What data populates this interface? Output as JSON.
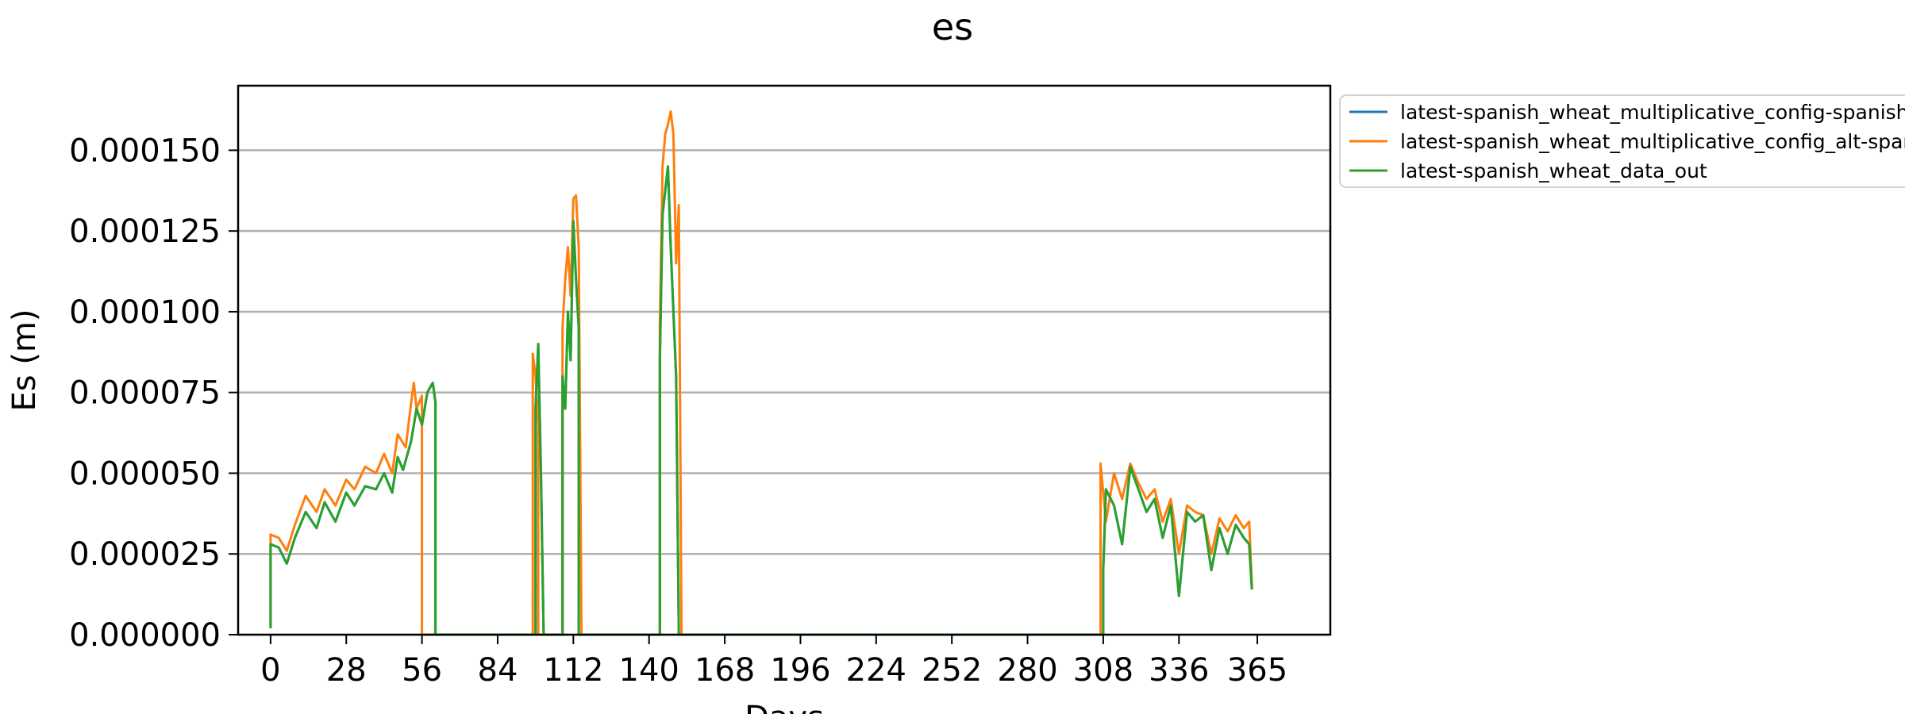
{
  "chart_data": {
    "type": "line",
    "title": "es",
    "xlabel": "Days",
    "ylabel": "Es (m)",
    "xlim": [
      -12,
      392
    ],
    "ylim": [
      0,
      0.00017
    ],
    "grid": "horizontal",
    "legend_position": "outside-top-right",
    "x_ticks": [
      0,
      28,
      56,
      84,
      112,
      140,
      168,
      196,
      224,
      252,
      280,
      308,
      336,
      365
    ],
    "y_ticks": [
      0,
      2.5e-05,
      5e-05,
      7.5e-05,
      0.0001,
      0.000125,
      0.00015
    ],
    "y_tick_labels": [
      "0.000000",
      "0.000025",
      "0.000050",
      "0.000075",
      "0.000100",
      "0.000125",
      "0.000150"
    ],
    "series": [
      {
        "name": "latest-spanish_wheat_multiplicative_config-spanish_w",
        "color": "#1f77b4",
        "points": [
          [
            0,
            2e-06
          ],
          [
            0,
            2.8e-05
          ],
          [
            3,
            2.7e-05
          ],
          [
            6,
            2.2e-05
          ],
          [
            9,
            3e-05
          ],
          [
            13,
            3.8e-05
          ],
          [
            17,
            3.3e-05
          ],
          [
            20,
            4.1e-05
          ],
          [
            24,
            3.5e-05
          ],
          [
            28,
            4.4e-05
          ],
          [
            31,
            4e-05
          ],
          [
            35,
            4.6e-05
          ],
          [
            39,
            4.5e-05
          ],
          [
            42,
            5e-05
          ],
          [
            45,
            4.4e-05
          ],
          [
            47,
            5.5e-05
          ],
          [
            49,
            5.1e-05
          ],
          [
            52,
            6e-05
          ],
          [
            54,
            7e-05
          ],
          [
            56,
            6.5e-05
          ],
          [
            58,
            7.5e-05
          ],
          [
            60,
            7.8e-05
          ],
          [
            61,
            7.2e-05
          ],
          [
            61,
            0
          ],
          [
            98,
            0
          ],
          [
            98,
            7e-05
          ],
          [
            99,
            9e-05
          ],
          [
            100,
            5e-05
          ],
          [
            101,
            0
          ],
          [
            108,
            0
          ],
          [
            108,
            8e-05
          ],
          [
            109,
            7e-05
          ],
          [
            110,
            0.0001
          ],
          [
            111,
            8.5e-05
          ],
          [
            112,
            0.000128
          ],
          [
            113,
            0.00011
          ],
          [
            114,
            9.5e-05
          ],
          [
            114,
            0
          ],
          [
            144,
            0
          ],
          [
            144,
            8.5e-05
          ],
          [
            145,
            0.00013
          ],
          [
            147,
            0.000145
          ],
          [
            148,
            0.00012
          ],
          [
            149,
            0.0001
          ],
          [
            150,
            8e-05
          ],
          [
            151,
            0
          ],
          [
            308,
            0
          ],
          [
            308,
            2e-05
          ],
          [
            309,
            4.5e-05
          ],
          [
            312,
            4e-05
          ],
          [
            315,
            2.8e-05
          ],
          [
            318,
            5.2e-05
          ],
          [
            321,
            4.5e-05
          ],
          [
            324,
            3.8e-05
          ],
          [
            327,
            4.2e-05
          ],
          [
            330,
            3e-05
          ],
          [
            333,
            4e-05
          ],
          [
            336,
            1.2e-05
          ],
          [
            339,
            3.8e-05
          ],
          [
            342,
            3.5e-05
          ],
          [
            345,
            3.7e-05
          ],
          [
            348,
            2e-05
          ],
          [
            351,
            3.3e-05
          ],
          [
            354,
            2.5e-05
          ],
          [
            357,
            3.4e-05
          ],
          [
            360,
            3e-05
          ],
          [
            362,
            2.8e-05
          ],
          [
            363,
            1.4e-05
          ]
        ]
      },
      {
        "name": "latest-spanish_wheat_multiplicative_config_alt-spanis",
        "color": "#ff7f0e",
        "points": [
          [
            0,
            3e-06
          ],
          [
            0,
            3.1e-05
          ],
          [
            3,
            3e-05
          ],
          [
            6,
            2.6e-05
          ],
          [
            9,
            3.4e-05
          ],
          [
            13,
            4.3e-05
          ],
          [
            17,
            3.8e-05
          ],
          [
            20,
            4.5e-05
          ],
          [
            24,
            4e-05
          ],
          [
            28,
            4.8e-05
          ],
          [
            31,
            4.5e-05
          ],
          [
            35,
            5.2e-05
          ],
          [
            39,
            5e-05
          ],
          [
            42,
            5.6e-05
          ],
          [
            45,
            5e-05
          ],
          [
            47,
            6.2e-05
          ],
          [
            50,
            5.8e-05
          ],
          [
            52,
            7.2e-05
          ],
          [
            53,
            7.8e-05
          ],
          [
            54,
            7e-05
          ],
          [
            56,
            7.4e-05
          ],
          [
            56,
            0
          ],
          [
            97,
            0
          ],
          [
            97,
            8.7e-05
          ],
          [
            98,
            8e-05
          ],
          [
            99,
            6.5e-05
          ],
          [
            99,
            0
          ],
          [
            108,
            0
          ],
          [
            108,
            9.5e-05
          ],
          [
            109,
            0.00011
          ],
          [
            110,
            0.00012
          ],
          [
            111,
            0.000105
          ],
          [
            112,
            0.000135
          ],
          [
            113,
            0.000136
          ],
          [
            114,
            0.00012
          ],
          [
            115,
            0
          ],
          [
            144,
            0
          ],
          [
            144,
            9.5e-05
          ],
          [
            145,
            0.000145
          ],
          [
            146,
            0.000155
          ],
          [
            147,
            0.000158
          ],
          [
            148,
            0.000162
          ],
          [
            149,
            0.000155
          ],
          [
            150,
            0.000115
          ],
          [
            151,
            0.000133
          ],
          [
            152,
            0
          ],
          [
            307,
            0
          ],
          [
            307,
            5.3e-05
          ],
          [
            309,
            3.5e-05
          ],
          [
            312,
            5e-05
          ],
          [
            315,
            4.2e-05
          ],
          [
            318,
            5.3e-05
          ],
          [
            321,
            4.7e-05
          ],
          [
            324,
            4.2e-05
          ],
          [
            327,
            4.5e-05
          ],
          [
            330,
            3.5e-05
          ],
          [
            333,
            4.2e-05
          ],
          [
            336,
            2.5e-05
          ],
          [
            339,
            4e-05
          ],
          [
            342,
            3.8e-05
          ],
          [
            345,
            3.7e-05
          ],
          [
            348,
            2.5e-05
          ],
          [
            351,
            3.6e-05
          ],
          [
            354,
            3.2e-05
          ],
          [
            357,
            3.7e-05
          ],
          [
            360,
            3.3e-05
          ],
          [
            362,
            3.5e-05
          ],
          [
            363,
            1.5e-05
          ]
        ]
      },
      {
        "name": "latest-spanish_wheat_data_out",
        "color": "#2ca02c",
        "points": [
          [
            0,
            2e-06
          ],
          [
            0,
            2.8e-05
          ],
          [
            3,
            2.7e-05
          ],
          [
            6,
            2.2e-05
          ],
          [
            9,
            3e-05
          ],
          [
            13,
            3.8e-05
          ],
          [
            17,
            3.3e-05
          ],
          [
            20,
            4.1e-05
          ],
          [
            24,
            3.5e-05
          ],
          [
            28,
            4.4e-05
          ],
          [
            31,
            4e-05
          ],
          [
            35,
            4.6e-05
          ],
          [
            39,
            4.5e-05
          ],
          [
            42,
            5e-05
          ],
          [
            45,
            4.4e-05
          ],
          [
            47,
            5.5e-05
          ],
          [
            49,
            5.1e-05
          ],
          [
            52,
            6e-05
          ],
          [
            54,
            7e-05
          ],
          [
            56,
            6.5e-05
          ],
          [
            58,
            7.5e-05
          ],
          [
            60,
            7.8e-05
          ],
          [
            61,
            7.2e-05
          ],
          [
            61,
            0
          ],
          [
            98,
            0
          ],
          [
            98,
            7e-05
          ],
          [
            99,
            9e-05
          ],
          [
            100,
            5e-05
          ],
          [
            101,
            0
          ],
          [
            108,
            0
          ],
          [
            108,
            8e-05
          ],
          [
            109,
            7e-05
          ],
          [
            110,
            0.0001
          ],
          [
            111,
            8.5e-05
          ],
          [
            112,
            0.000128
          ],
          [
            113,
            0.00011
          ],
          [
            114,
            9.5e-05
          ],
          [
            114,
            0
          ],
          [
            144,
            0
          ],
          [
            144,
            8.5e-05
          ],
          [
            145,
            0.00013
          ],
          [
            147,
            0.000145
          ],
          [
            148,
            0.00012
          ],
          [
            149,
            0.0001
          ],
          [
            150,
            8e-05
          ],
          [
            151,
            0
          ],
          [
            308,
            0
          ],
          [
            308,
            2e-05
          ],
          [
            309,
            4.5e-05
          ],
          [
            312,
            4e-05
          ],
          [
            315,
            2.8e-05
          ],
          [
            318,
            5.2e-05
          ],
          [
            321,
            4.5e-05
          ],
          [
            324,
            3.8e-05
          ],
          [
            327,
            4.2e-05
          ],
          [
            330,
            3e-05
          ],
          [
            333,
            4e-05
          ],
          [
            336,
            1.2e-05
          ],
          [
            339,
            3.8e-05
          ],
          [
            342,
            3.5e-05
          ],
          [
            345,
            3.7e-05
          ],
          [
            348,
            2e-05
          ],
          [
            351,
            3.3e-05
          ],
          [
            354,
            2.5e-05
          ],
          [
            357,
            3.4e-05
          ],
          [
            360,
            3e-05
          ],
          [
            362,
            2.8e-05
          ],
          [
            363,
            1.4e-05
          ]
        ]
      }
    ]
  }
}
